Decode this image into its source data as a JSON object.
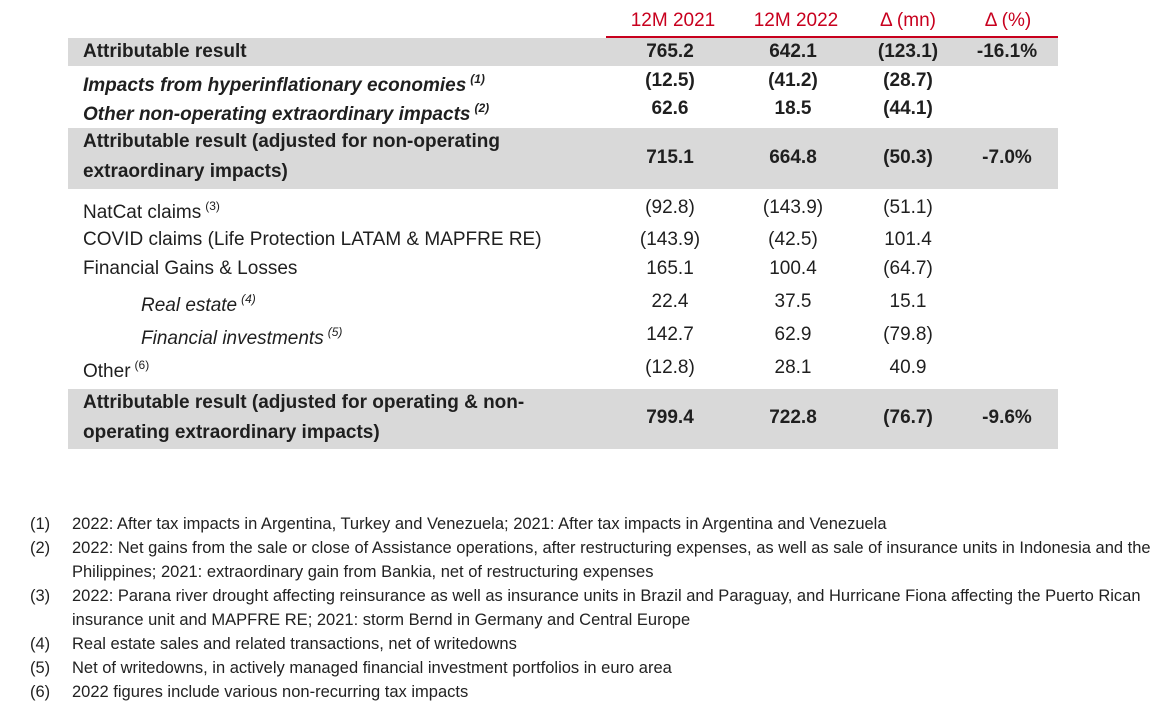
{
  "headers": {
    "c1": "12M 2021",
    "c2": "12M 2022",
    "c3": "Δ (mn)",
    "c4": "Δ (%)"
  },
  "rows": [
    {
      "label": "Attributable result",
      "sup": "",
      "v1": "765.2",
      "v2": "642.1",
      "v3": "(123.1)",
      "v4": "-16.1%"
    },
    {
      "label": "Impacts from hyperinflationary economies",
      "sup": "(1)",
      "v1": "(12.5)",
      "v2": "(41.2)",
      "v3": "(28.7)",
      "v4": ""
    },
    {
      "label": "Other non-operating extraordinary impacts",
      "sup": "(2)",
      "v1": "62.6",
      "v2": "18.5",
      "v3": "(44.1)",
      "v4": ""
    },
    {
      "label_line1": "Attributable result (adjusted for non-operating",
      "label_line2": "extraordinary impacts)",
      "v1": "715.1",
      "v2": "664.8",
      "v3": "(50.3)",
      "v4": "-7.0%"
    },
    {
      "label": "NatCat claims",
      "sup": "(3)",
      "v1": "(92.8)",
      "v2": "(143.9)",
      "v3": "(51.1)",
      "v4": ""
    },
    {
      "label": "COVID claims (Life Protection LATAM & MAPFRE RE)",
      "sup": "",
      "v1": "(143.9)",
      "v2": "(42.5)",
      "v3": "101.4",
      "v4": ""
    },
    {
      "label": "Financial Gains & Losses",
      "sup": "",
      "v1": "165.1",
      "v2": "100.4",
      "v3": "(64.7)",
      "v4": ""
    },
    {
      "label": "Real estate",
      "sup": "(4)",
      "v1": "22.4",
      "v2": "37.5",
      "v3": "15.1",
      "v4": ""
    },
    {
      "label": "Financial investments",
      "sup": "(5)",
      "v1": "142.7",
      "v2": "62.9",
      "v3": "(79.8)",
      "v4": ""
    },
    {
      "label": "Other",
      "sup": "(6)",
      "v1": "(12.8)",
      "v2": "28.1",
      "v3": "40.9",
      "v4": ""
    },
    {
      "label_line1": "Attributable result (adjusted for operating & non-",
      "label_line2": "operating extraordinary impacts)",
      "v1": "799.4",
      "v2": "722.8",
      "v3": "(76.7)",
      "v4": "-9.6%"
    }
  ],
  "notes": [
    {
      "num": "(1)",
      "text": "2022: After tax impacts in Argentina, Turkey and Venezuela; 2021: After tax impacts in Argentina and Venezuela"
    },
    {
      "num": "(2)",
      "text": "2022: Net gains from the sale or close of Assistance operations, after restructuring expenses, as well as sale of insurance units in Indonesia and the Philippines; 2021: extraordinary gain from Bankia, net of restructuring expenses"
    },
    {
      "num": "(3)",
      "text": "2022: Parana river drought affecting reinsurance as well as insurance units in Brazil and Paraguay, and Hurricane Fiona affecting the Puerto Rican insurance unit and MAPFRE RE; 2021: storm Bernd in Germany and Central Europe"
    },
    {
      "num": "(4)",
      "text": "Real estate sales and related transactions, net of writedowns"
    },
    {
      "num": "(5)",
      "text": "Net of writedowns, in actively managed financial investment portfolios in euro area"
    },
    {
      "num": "(6)",
      "text": "2022 figures include various non-recurring tax impacts"
    }
  ]
}
